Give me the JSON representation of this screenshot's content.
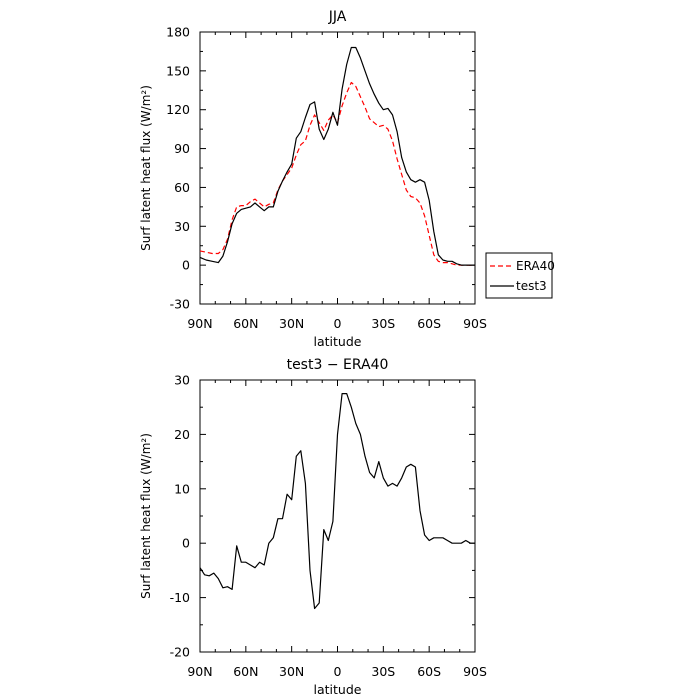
{
  "chart_data": [
    {
      "type": "line",
      "title": "JJA",
      "xlabel": "latitude",
      "ylabel": "Surf latent heat flux (W/m²)",
      "x_tick_labels": [
        "90N",
        "60N",
        "30N",
        "0",
        "30S",
        "60S",
        "90S"
      ],
      "x_tick_values": [
        90,
        60,
        30,
        0,
        -30,
        -60,
        -90
      ],
      "xlim": [
        90,
        -90
      ],
      "ylim": [
        -30,
        180
      ],
      "y_ticks": [
        -30,
        0,
        30,
        60,
        90,
        120,
        150,
        180
      ],
      "legend_placement": "right",
      "series": [
        {
          "name": "ERA40",
          "color": "#ff0000",
          "style": "dashed",
          "x": [
            90,
            86,
            82,
            78,
            75,
            72,
            69,
            66,
            63,
            60,
            57,
            54,
            51,
            48,
            45,
            42,
            39,
            36,
            33,
            30,
            27,
            24,
            21,
            18,
            15,
            12,
            9,
            6,
            3,
            0,
            -3,
            -6,
            -9,
            -12,
            -15,
            -18,
            -21,
            -24,
            -27,
            -30,
            -33,
            -36,
            -39,
            -42,
            -45,
            -48,
            -51,
            -54,
            -57,
            -60,
            -63,
            -66,
            -69,
            -72,
            -75,
            -78,
            -81,
            -84,
            -87,
            -90
          ],
          "y": [
            11,
            10,
            9,
            9,
            12,
            20,
            35,
            45,
            46,
            46,
            49,
            51,
            48,
            45,
            47,
            48,
            58,
            65,
            70,
            75,
            85,
            93,
            96,
            108,
            116,
            110,
            104,
            112,
            116,
            110,
            123,
            133,
            141,
            138,
            130,
            122,
            113,
            110,
            107,
            108,
            105,
            96,
            82,
            70,
            58,
            53,
            52,
            48,
            38,
            23,
            8,
            3,
            2,
            2,
            1,
            0,
            0,
            0,
            0,
            0
          ]
        },
        {
          "name": "test3",
          "color": "#000000",
          "style": "solid",
          "x": [
            90,
            86,
            82,
            78,
            75,
            72,
            69,
            66,
            63,
            60,
            57,
            54,
            51,
            48,
            45,
            42,
            39,
            36,
            33,
            30,
            27,
            24,
            21,
            18,
            15,
            12,
            9,
            6,
            3,
            0,
            -3,
            -6,
            -9,
            -12,
            -15,
            -18,
            -21,
            -24,
            -27,
            -30,
            -33,
            -36,
            -39,
            -42,
            -45,
            -48,
            -51,
            -54,
            -57,
            -60,
            -63,
            -66,
            -69,
            -72,
            -75,
            -78,
            -81,
            -84,
            -87,
            -90
          ],
          "y": [
            6,
            4,
            3,
            2,
            7,
            18,
            32,
            40,
            43,
            44,
            45,
            48,
            45,
            42,
            45,
            45,
            57,
            65,
            72,
            78,
            98,
            103,
            114,
            124,
            126,
            105,
            97,
            105,
            118,
            108,
            136,
            155,
            168,
            168,
            160,
            150,
            140,
            132,
            125,
            120,
            121,
            116,
            103,
            83,
            72,
            66,
            64,
            66,
            64,
            50,
            26,
            8,
            4,
            3,
            3,
            1,
            0,
            0,
            0,
            0
          ]
        }
      ]
    },
    {
      "type": "line",
      "title": "test3 − ERA40",
      "xlabel": "latitude",
      "ylabel": "Surf latent heat flux (W/m²)",
      "x_tick_labels": [
        "90N",
        "60N",
        "30N",
        "0",
        "30S",
        "60S",
        "90S"
      ],
      "x_tick_values": [
        90,
        60,
        30,
        0,
        -30,
        -60,
        -90
      ],
      "xlim": [
        90,
        -90
      ],
      "ylim": [
        -20,
        30
      ],
      "y_ticks": [
        -20,
        -10,
        0,
        10,
        20,
        30
      ],
      "series": [
        {
          "color": "#000000",
          "style": "solid",
          "x": [
            90,
            87,
            84,
            81,
            78,
            75,
            72,
            69,
            66,
            63,
            60,
            57,
            54,
            51,
            48,
            45,
            42,
            39,
            36,
            33,
            30,
            27,
            24,
            21,
            18,
            15,
            12,
            9,
            6,
            3,
            0,
            -3,
            -6,
            -9,
            -12,
            -15,
            -18,
            -21,
            -24,
            -27,
            -30,
            -33,
            -36,
            -39,
            -42,
            -45,
            -48,
            -51,
            -54,
            -57,
            -60,
            -63,
            -66,
            -69,
            -72,
            -75,
            -78,
            -81,
            -84,
            -87,
            -90
          ],
          "y": [
            -4.5,
            -5.8,
            -6,
            -5.5,
            -6.5,
            -8.2,
            -8,
            -8.5,
            -0.5,
            -3.5,
            -3.5,
            -4,
            -4.5,
            -3.5,
            -4,
            0,
            1,
            4.5,
            4.5,
            9,
            8,
            16,
            17,
            11,
            -5,
            -12,
            -11,
            2.5,
            0.5,
            4,
            20,
            27.5,
            27.5,
            25,
            22,
            20,
            16,
            13,
            12,
            15,
            12,
            10.5,
            11,
            10.5,
            12,
            14,
            14.5,
            14,
            6,
            1.5,
            0.5,
            1,
            1,
            1,
            0.5,
            0,
            0,
            0,
            0.5,
            0,
            0
          ]
        }
      ]
    }
  ]
}
